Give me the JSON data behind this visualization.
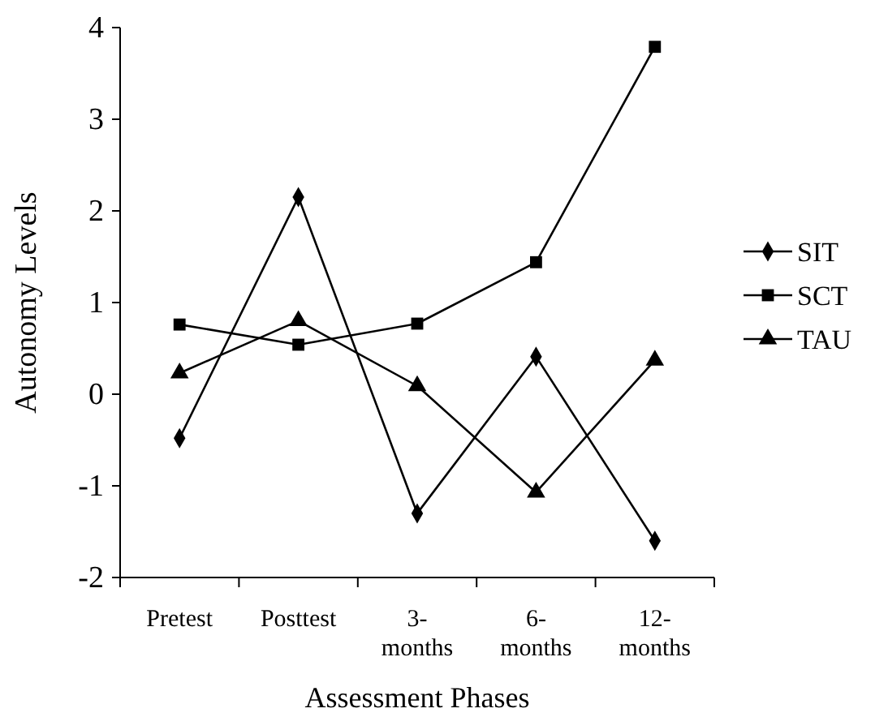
{
  "chart_data": {
    "type": "line",
    "xlabel": "Assessment Phases",
    "ylabel": "Autonomy Levels",
    "categories": [
      "Pretest",
      "Posttest",
      "3-months",
      "6-months",
      "12-months"
    ],
    "series": [
      {
        "name": "SIT",
        "color": "#000000",
        "marker": "diamond",
        "values": [
          -0.48,
          2.15,
          -1.3,
          0.41,
          -1.6
        ]
      },
      {
        "name": "SCT",
        "color": "#000000",
        "marker": "square",
        "values": [
          0.76,
          0.54,
          0.77,
          1.44,
          3.79
        ]
      },
      {
        "name": "TAU",
        "color": "#000000",
        "marker": "triangle",
        "values": [
          0.23,
          0.8,
          0.09,
          -1.07,
          0.37
        ]
      }
    ],
    "ylim": [
      -2,
      4
    ],
    "yticks": [
      -2,
      -1,
      0,
      1,
      2,
      3,
      4
    ],
    "grid": false,
    "legend": "right",
    "line_style": "solid"
  }
}
